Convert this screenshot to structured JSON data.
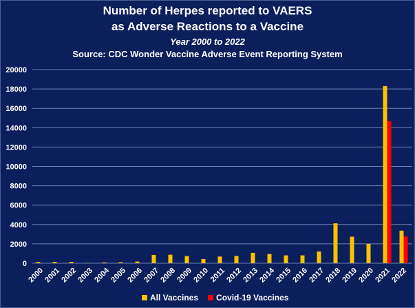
{
  "chart_data": {
    "type": "bar",
    "title": "Number of Herpes reported to VAERS",
    "title_line2": "as Adverse Reactions to a Vaccine",
    "subtitle": "Year 2000 to 2022",
    "source": "Source: CDC Wonder Vaccine Adverse Event Reporting System",
    "xlabel": "",
    "ylabel": "",
    "ylim": [
      0,
      20000
    ],
    "yticks": [
      0,
      2000,
      4000,
      6000,
      8000,
      10000,
      12000,
      14000,
      16000,
      18000,
      20000
    ],
    "grid": true,
    "legend_position": "bottom",
    "categories": [
      "2000",
      "2001",
      "2002",
      "2003",
      "2004",
      "2005",
      "2006",
      "2007",
      "2008",
      "2009",
      "2010",
      "2011",
      "2012",
      "2013",
      "2014",
      "2015",
      "2016",
      "2017",
      "2018",
      "2019",
      "2020",
      "2021",
      "2022"
    ],
    "series": [
      {
        "name": "All Vaccines",
        "color": "#ffc000",
        "values": [
          120,
          130,
          130,
          30,
          80,
          100,
          170,
          860,
          880,
          740,
          430,
          690,
          740,
          1070,
          950,
          810,
          810,
          1210,
          4120,
          2740,
          2000,
          18300,
          3360
        ]
      },
      {
        "name": "Covid-19 Vaccines",
        "color": "#ff0000",
        "values": [
          0,
          0,
          0,
          0,
          0,
          0,
          0,
          0,
          0,
          0,
          0,
          0,
          0,
          0,
          0,
          0,
          0,
          0,
          0,
          0,
          20,
          14700,
          2760
        ]
      }
    ]
  }
}
